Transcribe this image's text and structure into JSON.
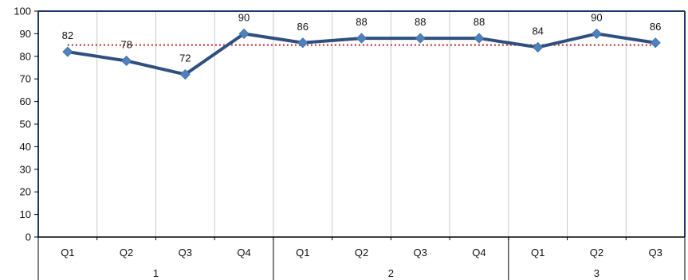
{
  "chart_data": {
    "type": "line",
    "title": "",
    "xlabel": "",
    "ylabel": "",
    "ylim": [
      0,
      100
    ],
    "yticks": [
      0,
      10,
      20,
      30,
      40,
      50,
      60,
      70,
      80,
      90,
      100
    ],
    "groups": [
      {
        "label": "1",
        "categories": [
          "Q1",
          "Q2",
          "Q3",
          "Q4"
        ]
      },
      {
        "label": "2",
        "categories": [
          "Q1",
          "Q2",
          "Q3",
          "Q4"
        ]
      },
      {
        "label": "3",
        "categories": [
          "Q1",
          "Q2",
          "Q3"
        ]
      }
    ],
    "series": [
      {
        "values": [
          82,
          78,
          72,
          90,
          86,
          88,
          88,
          88,
          84,
          90,
          86
        ],
        "color": "#2f4f7f",
        "marker_color": "#4f81bd"
      }
    ],
    "reference_line": {
      "value": 85,
      "color": "#c0504d",
      "style": "dotted"
    },
    "grid": "vertical",
    "legend": "none"
  }
}
